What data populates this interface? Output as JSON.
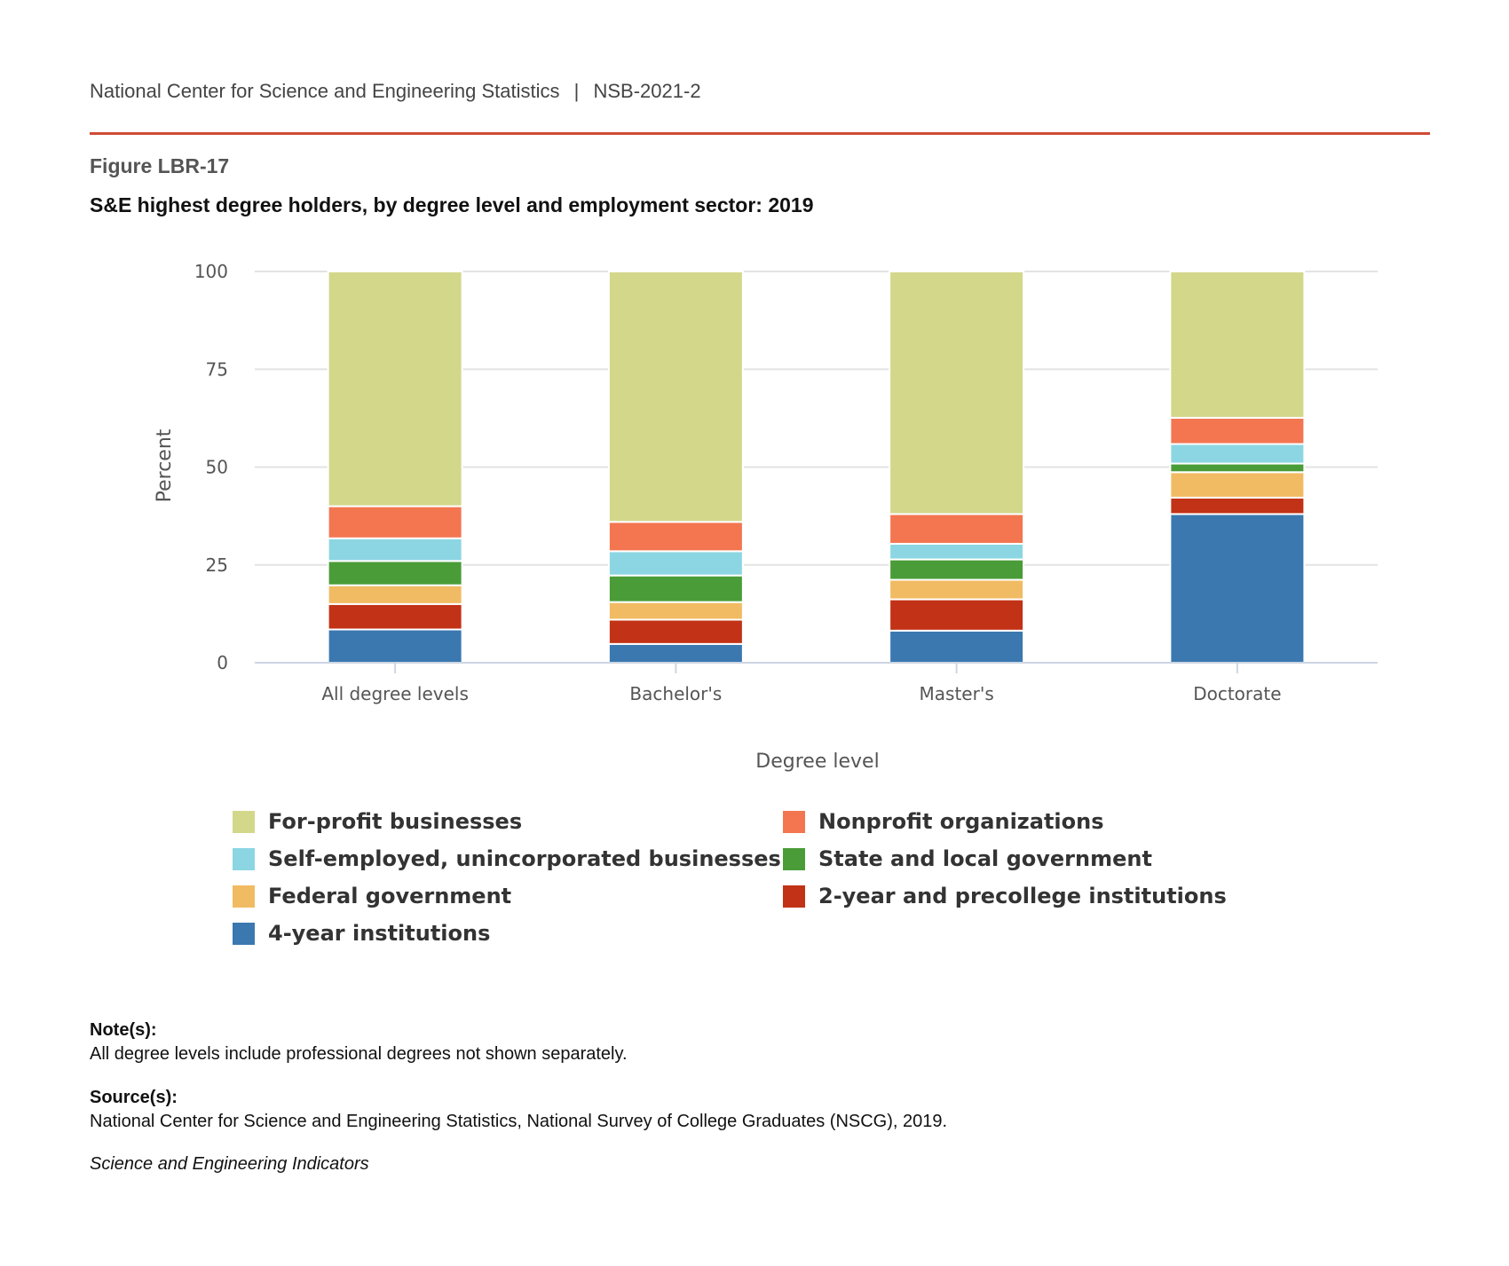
{
  "header": {
    "org": "National Center for Science and Engineering Statistics",
    "separator": "|",
    "report": "NSB-2021-2"
  },
  "figure": {
    "number": "Figure LBR-17",
    "title": "S&E highest degree holders, by degree level and employment sector: 2019"
  },
  "chart_data": {
    "type": "bar",
    "stacked": true,
    "categories": [
      "All degree levels",
      "Bachelor's",
      "Master's",
      "Doctorate"
    ],
    "xlabel": "Degree level",
    "ylabel": "Percent",
    "ylim": [
      0,
      100
    ],
    "yticks": [
      "0",
      "25",
      "50",
      "75",
      "100"
    ],
    "grid": true,
    "legend_position": "bottom",
    "series": [
      {
        "name": "4-year institutions",
        "color": "#3b78b0",
        "values": [
          8.5,
          4.8,
          8.2,
          38.0
        ]
      },
      {
        "name": "2-year and precollege institutions",
        "color": "#c23216",
        "values": [
          6.5,
          6.2,
          8.0,
          4.2
        ]
      },
      {
        "name": "Federal government",
        "color": "#f1bb63",
        "values": [
          4.8,
          4.5,
          5.0,
          6.5
        ]
      },
      {
        "name": "State and local government",
        "color": "#4a9c38",
        "values": [
          6.2,
          6.8,
          5.2,
          2.2
        ]
      },
      {
        "name": "Self-employed, unincorporated businesses",
        "color": "#8cd6e3",
        "values": [
          5.8,
          6.2,
          4.0,
          5.0
        ]
      },
      {
        "name": "Nonprofit organizations",
        "color": "#f37650",
        "values": [
          8.2,
          7.5,
          7.6,
          6.7
        ]
      },
      {
        "name": "For-profit businesses",
        "color": "#d3d78a",
        "values": [
          60.0,
          64.0,
          62.0,
          37.4
        ]
      }
    ]
  },
  "legend_order": [
    "For-profit businesses",
    "Nonprofit organizations",
    "Self-employed, unincorporated businesses",
    "State and local government",
    "Federal government",
    "2-year and precollege institutions",
    "4-year institutions"
  ],
  "notes": {
    "note_head": "Note(s):",
    "note_text": "All degree levels include professional degrees not shown separately.",
    "source_head": "Source(s):",
    "source_text": "National Center for Science and Engineering Statistics, National Survey of College Graduates (NSCG), 2019.",
    "footer": "Science and Engineering Indicators"
  }
}
